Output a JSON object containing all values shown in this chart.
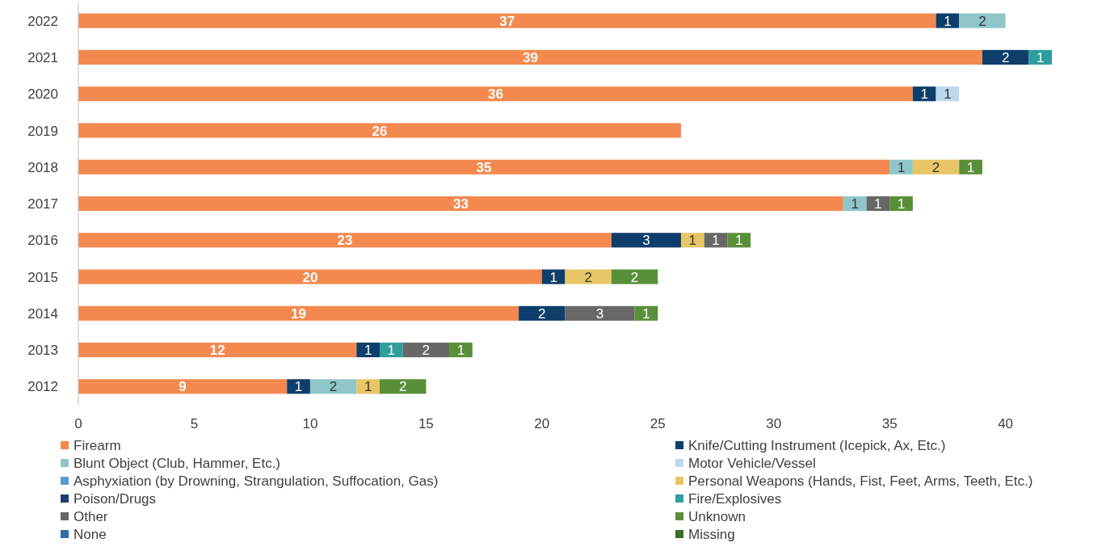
{
  "chart_data": {
    "type": "bar",
    "orientation": "horizontal",
    "stacked": true,
    "data_labels": true,
    "legend": "bottom",
    "grid": false,
    "categories": [
      "2022",
      "2021",
      "2020",
      "2019",
      "2018",
      "2017",
      "2016",
      "2015",
      "2014",
      "2013",
      "2012"
    ],
    "xlim": [
      0,
      42
    ],
    "xticks": [
      0,
      5,
      10,
      15,
      20,
      25,
      30,
      35,
      40
    ],
    "series": [
      {
        "name": "Firearm",
        "color": "#f4894f",
        "values": [
          37,
          39,
          36,
          26,
          35,
          33,
          23,
          20,
          19,
          12,
          9
        ]
      },
      {
        "name": "Knife/Cutting Instrument (Icepick, Ax, Etc.)",
        "color": "#0e3e6b",
        "values": [
          1,
          2,
          1,
          null,
          null,
          null,
          3,
          1,
          2,
          1,
          1
        ]
      },
      {
        "name": "Blunt Object (Club, Hammer, Etc.)",
        "color": "#8fc7c9",
        "values": [
          2,
          null,
          null,
          null,
          1,
          1,
          null,
          null,
          null,
          null,
          2
        ]
      },
      {
        "name": "Motor Vehicle/Vessel",
        "color": "#bcd8ee",
        "values": [
          null,
          null,
          1,
          null,
          null,
          null,
          null,
          null,
          null,
          null,
          null
        ]
      },
      {
        "name": "Asphyxiation (by Drowning, Strangulation, Suffocation, Gas)",
        "color": "#5b9bd5",
        "values": [
          null,
          null,
          null,
          null,
          null,
          null,
          null,
          null,
          null,
          null,
          null
        ]
      },
      {
        "name": "Personal Weapons (Hands, Fist, Feet, Arms, Teeth, Etc.)",
        "color": "#e8c566",
        "values": [
          null,
          null,
          null,
          null,
          2,
          null,
          1,
          2,
          null,
          null,
          1
        ]
      },
      {
        "name": "Poison/Drugs",
        "color": "#1f3d6e",
        "values": [
          null,
          null,
          null,
          null,
          null,
          null,
          null,
          null,
          null,
          null,
          null
        ]
      },
      {
        "name": "Fire/Explosives",
        "color": "#2e9e9e",
        "values": [
          null,
          1,
          null,
          null,
          null,
          null,
          null,
          null,
          null,
          1,
          null
        ]
      },
      {
        "name": "Other",
        "color": "#676767",
        "values": [
          null,
          null,
          null,
          null,
          null,
          1,
          1,
          null,
          3,
          2,
          null
        ]
      },
      {
        "name": "Unknown",
        "color": "#5a8f3a",
        "values": [
          null,
          null,
          null,
          null,
          1,
          1,
          1,
          2,
          1,
          1,
          2
        ]
      },
      {
        "name": "None",
        "color": "#2e6fa7",
        "values": [
          null,
          null,
          null,
          null,
          null,
          null,
          null,
          null,
          null,
          null,
          null
        ]
      },
      {
        "name": "Missing",
        "color": "#3d6b2a",
        "values": [
          null,
          null,
          null,
          null,
          null,
          null,
          null,
          null,
          null,
          null,
          null
        ]
      }
    ]
  }
}
